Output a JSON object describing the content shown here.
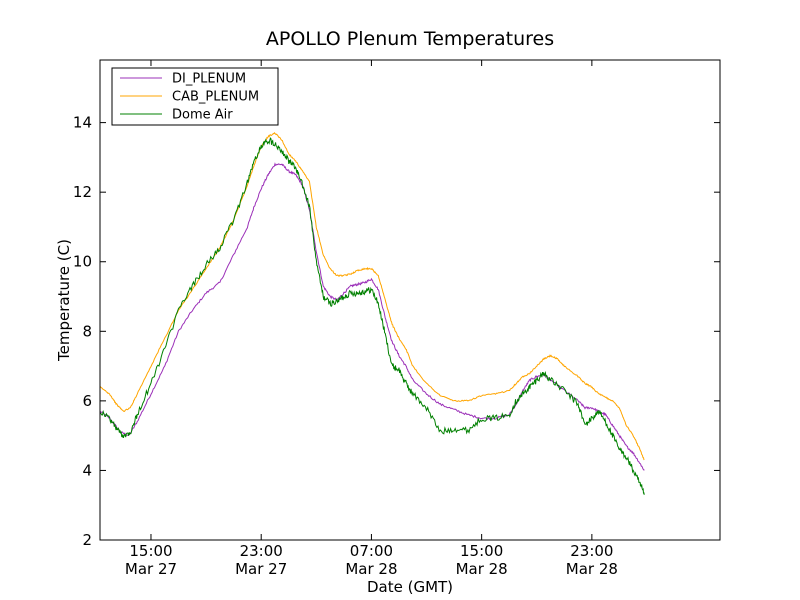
{
  "chart_data": {
    "type": "line",
    "title": "APOLLO Plenum Temperatures",
    "xlabel": "Date (GMT)",
    "ylabel": "Temperature (C)",
    "ylim": [
      2,
      15.8
    ],
    "xlim_hours": [
      -3.7,
      41.3
    ],
    "yticks": [
      2,
      4,
      6,
      8,
      10,
      12,
      14
    ],
    "xticks": [
      {
        "hours": 0,
        "line1": "15:00",
        "line2": "Mar 27"
      },
      {
        "hours": 8,
        "line1": "23:00",
        "line2": "Mar 27"
      },
      {
        "hours": 16,
        "line1": "07:00",
        "line2": "Mar 28"
      },
      {
        "hours": 24,
        "line1": "15:00",
        "line2": "Mar 28"
      },
      {
        "hours": 32,
        "line1": "23:00",
        "line2": "Mar 28"
      }
    ],
    "x_units": "hours since Mar 27 15:00 GMT",
    "legend_position": "top-left",
    "series": [
      {
        "name": "DI_PLENUM",
        "color": "#9b30b8",
        "points": [
          [
            -3.7,
            5.7
          ],
          [
            -3.0,
            5.5
          ],
          [
            -2.2,
            5.1
          ],
          [
            -1.6,
            5.0
          ],
          [
            -1.0,
            5.4
          ],
          [
            0,
            6.2
          ],
          [
            1,
            7.0
          ],
          [
            2,
            8.0
          ],
          [
            3,
            8.6
          ],
          [
            4,
            9.1
          ],
          [
            5,
            9.4
          ],
          [
            6,
            10.2
          ],
          [
            7,
            11.0
          ],
          [
            7.5,
            11.6
          ],
          [
            8,
            12.1
          ],
          [
            8.5,
            12.5
          ],
          [
            9,
            12.8
          ],
          [
            9.5,
            12.8
          ],
          [
            10,
            12.6
          ],
          [
            10.5,
            12.5
          ],
          [
            11,
            12.2
          ],
          [
            11.5,
            11.5
          ],
          [
            12,
            10.3
          ],
          [
            12.5,
            9.3
          ],
          [
            13,
            9.0
          ],
          [
            13.5,
            8.9
          ],
          [
            14,
            9.1
          ],
          [
            14.5,
            9.3
          ],
          [
            15,
            9.35
          ],
          [
            15.5,
            9.4
          ],
          [
            16,
            9.5
          ],
          [
            16.5,
            9.2
          ],
          [
            17,
            8.4
          ],
          [
            17.5,
            7.7
          ],
          [
            18,
            7.3
          ],
          [
            18.5,
            7.0
          ],
          [
            19,
            6.6
          ],
          [
            20,
            6.2
          ],
          [
            21,
            5.9
          ],
          [
            22,
            5.75
          ],
          [
            23,
            5.6
          ],
          [
            24,
            5.5
          ],
          [
            25,
            5.5
          ],
          [
            26,
            5.6
          ],
          [
            26.5,
            5.9
          ],
          [
            27,
            6.3
          ],
          [
            27.5,
            6.6
          ],
          [
            28,
            6.7
          ],
          [
            28.5,
            6.75
          ],
          [
            29,
            6.6
          ],
          [
            30,
            6.3
          ],
          [
            31,
            6.0
          ],
          [
            31.5,
            5.8
          ],
          [
            32,
            5.8
          ],
          [
            32.5,
            5.7
          ],
          [
            33,
            5.6
          ],
          [
            33.5,
            5.3
          ],
          [
            34,
            5.0
          ],
          [
            34.5,
            4.7
          ],
          [
            35,
            4.5
          ],
          [
            35.5,
            4.2
          ],
          [
            35.8,
            4.0
          ]
        ]
      },
      {
        "name": "CAB_PLENUM",
        "color": "#ffa500",
        "points": [
          [
            -3.7,
            6.4
          ],
          [
            -3.0,
            6.2
          ],
          [
            -2.5,
            5.9
          ],
          [
            -2.0,
            5.7
          ],
          [
            -1.5,
            5.8
          ],
          [
            -1.0,
            6.2
          ],
          [
            0,
            7.0
          ],
          [
            1,
            7.8
          ],
          [
            2,
            8.6
          ],
          [
            3,
            9.2
          ],
          [
            4,
            9.8
          ],
          [
            5,
            10.4
          ],
          [
            6,
            11.2
          ],
          [
            7,
            12.2
          ],
          [
            7.5,
            12.8
          ],
          [
            8,
            13.3
          ],
          [
            8.5,
            13.6
          ],
          [
            9,
            13.7
          ],
          [
            9.5,
            13.5
          ],
          [
            10,
            13.1
          ],
          [
            10.5,
            12.9
          ],
          [
            11,
            12.6
          ],
          [
            11.5,
            12.3
          ],
          [
            12,
            11.0
          ],
          [
            12.5,
            10.2
          ],
          [
            13,
            9.8
          ],
          [
            13.5,
            9.6
          ],
          [
            14,
            9.6
          ],
          [
            14.5,
            9.65
          ],
          [
            15,
            9.75
          ],
          [
            15.5,
            9.8
          ],
          [
            16,
            9.8
          ],
          [
            16.5,
            9.6
          ],
          [
            17,
            8.9
          ],
          [
            17.5,
            8.2
          ],
          [
            18,
            7.8
          ],
          [
            18.5,
            7.5
          ],
          [
            19,
            7.0
          ],
          [
            20,
            6.5
          ],
          [
            21,
            6.15
          ],
          [
            22,
            6.0
          ],
          [
            23,
            6.0
          ],
          [
            24,
            6.15
          ],
          [
            25,
            6.2
          ],
          [
            26,
            6.3
          ],
          [
            26.5,
            6.5
          ],
          [
            27,
            6.7
          ],
          [
            27.5,
            6.8
          ],
          [
            28,
            7.0
          ],
          [
            28.5,
            7.2
          ],
          [
            29,
            7.3
          ],
          [
            29.5,
            7.2
          ],
          [
            30,
            7.0
          ],
          [
            31,
            6.7
          ],
          [
            31.5,
            6.5
          ],
          [
            32,
            6.4
          ],
          [
            32.5,
            6.2
          ],
          [
            33,
            6.1
          ],
          [
            33.5,
            6.0
          ],
          [
            34,
            5.8
          ],
          [
            34.5,
            5.3
          ],
          [
            35,
            5.0
          ],
          [
            35.5,
            4.6
          ],
          [
            35.8,
            4.3
          ]
        ]
      },
      {
        "name": "Dome Air",
        "color": "#008000",
        "points": [
          [
            -3.7,
            5.7
          ],
          [
            -3.0,
            5.5
          ],
          [
            -2.5,
            5.2
          ],
          [
            -2.0,
            5.0
          ],
          [
            -1.5,
            5.1
          ],
          [
            -1.0,
            5.6
          ],
          [
            0,
            6.5
          ],
          [
            1,
            7.5
          ],
          [
            2,
            8.6
          ],
          [
            3,
            9.3
          ],
          [
            4,
            9.9
          ],
          [
            5,
            10.4
          ],
          [
            6,
            11.2
          ],
          [
            7,
            12.3
          ],
          [
            7.5,
            12.9
          ],
          [
            8,
            13.3
          ],
          [
            8.5,
            13.5
          ],
          [
            9,
            13.4
          ],
          [
            9.5,
            13.2
          ],
          [
            10,
            12.9
          ],
          [
            10.5,
            12.7
          ],
          [
            11,
            12.2
          ],
          [
            11.5,
            11.6
          ],
          [
            12,
            10.0
          ],
          [
            12.5,
            9.0
          ],
          [
            13,
            8.8
          ],
          [
            13.5,
            8.85
          ],
          [
            14,
            9.0
          ],
          [
            14.5,
            9.1
          ],
          [
            15,
            9.1
          ],
          [
            15.5,
            9.15
          ],
          [
            16,
            9.2
          ],
          [
            16.5,
            8.8
          ],
          [
            17,
            7.9
          ],
          [
            17.5,
            7.0
          ],
          [
            18,
            6.9
          ],
          [
            18.5,
            6.5
          ],
          [
            19,
            6.2
          ],
          [
            20,
            5.8
          ],
          [
            21,
            5.1
          ],
          [
            22,
            5.2
          ],
          [
            23,
            5.15
          ],
          [
            24,
            5.5
          ],
          [
            25,
            5.5
          ],
          [
            26,
            5.6
          ],
          [
            26.5,
            6.0
          ],
          [
            27,
            6.2
          ],
          [
            27.5,
            6.4
          ],
          [
            28,
            6.6
          ],
          [
            28.5,
            6.8
          ],
          [
            29,
            6.6
          ],
          [
            30,
            6.3
          ],
          [
            31,
            5.9
          ],
          [
            31.5,
            5.3
          ],
          [
            32,
            5.5
          ],
          [
            32.5,
            5.7
          ],
          [
            33,
            5.4
          ],
          [
            33.5,
            5.0
          ],
          [
            34,
            4.6
          ],
          [
            34.5,
            4.4
          ],
          [
            35,
            4.0
          ],
          [
            35.5,
            3.6
          ],
          [
            35.8,
            3.3
          ]
        ]
      }
    ]
  }
}
